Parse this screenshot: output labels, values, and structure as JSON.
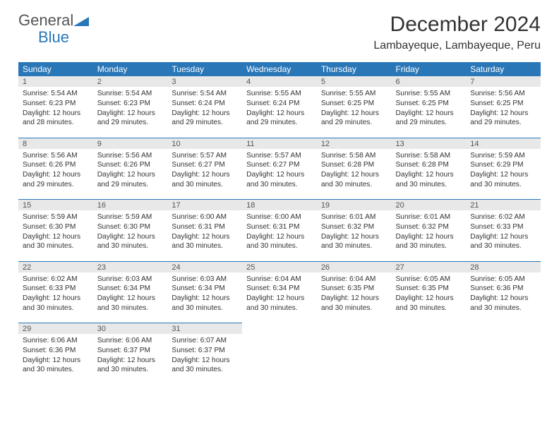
{
  "brand": {
    "word1": "General",
    "word2": "Blue"
  },
  "title": "December 2024",
  "location": "Lambayeque, Lambayeque, Peru",
  "header_bg": "#2a77b8",
  "header_fg": "#ffffff",
  "daynum_bg": "#e8e8e8",
  "row_border": "#2a77b8",
  "text_color": "#333333",
  "weekdays": [
    "Sunday",
    "Monday",
    "Tuesday",
    "Wednesday",
    "Thursday",
    "Friday",
    "Saturday"
  ],
  "weeks": [
    [
      {
        "n": "1",
        "sr": "5:54 AM",
        "ss": "6:23 PM",
        "dl": "12 hours and 28 minutes."
      },
      {
        "n": "2",
        "sr": "5:54 AM",
        "ss": "6:23 PM",
        "dl": "12 hours and 29 minutes."
      },
      {
        "n": "3",
        "sr": "5:54 AM",
        "ss": "6:24 PM",
        "dl": "12 hours and 29 minutes."
      },
      {
        "n": "4",
        "sr": "5:55 AM",
        "ss": "6:24 PM",
        "dl": "12 hours and 29 minutes."
      },
      {
        "n": "5",
        "sr": "5:55 AM",
        "ss": "6:25 PM",
        "dl": "12 hours and 29 minutes."
      },
      {
        "n": "6",
        "sr": "5:55 AM",
        "ss": "6:25 PM",
        "dl": "12 hours and 29 minutes."
      },
      {
        "n": "7",
        "sr": "5:56 AM",
        "ss": "6:25 PM",
        "dl": "12 hours and 29 minutes."
      }
    ],
    [
      {
        "n": "8",
        "sr": "5:56 AM",
        "ss": "6:26 PM",
        "dl": "12 hours and 29 minutes."
      },
      {
        "n": "9",
        "sr": "5:56 AM",
        "ss": "6:26 PM",
        "dl": "12 hours and 29 minutes."
      },
      {
        "n": "10",
        "sr": "5:57 AM",
        "ss": "6:27 PM",
        "dl": "12 hours and 30 minutes."
      },
      {
        "n": "11",
        "sr": "5:57 AM",
        "ss": "6:27 PM",
        "dl": "12 hours and 30 minutes."
      },
      {
        "n": "12",
        "sr": "5:58 AM",
        "ss": "6:28 PM",
        "dl": "12 hours and 30 minutes."
      },
      {
        "n": "13",
        "sr": "5:58 AM",
        "ss": "6:28 PM",
        "dl": "12 hours and 30 minutes."
      },
      {
        "n": "14",
        "sr": "5:59 AM",
        "ss": "6:29 PM",
        "dl": "12 hours and 30 minutes."
      }
    ],
    [
      {
        "n": "15",
        "sr": "5:59 AM",
        "ss": "6:30 PM",
        "dl": "12 hours and 30 minutes."
      },
      {
        "n": "16",
        "sr": "5:59 AM",
        "ss": "6:30 PM",
        "dl": "12 hours and 30 minutes."
      },
      {
        "n": "17",
        "sr": "6:00 AM",
        "ss": "6:31 PM",
        "dl": "12 hours and 30 minutes."
      },
      {
        "n": "18",
        "sr": "6:00 AM",
        "ss": "6:31 PM",
        "dl": "12 hours and 30 minutes."
      },
      {
        "n": "19",
        "sr": "6:01 AM",
        "ss": "6:32 PM",
        "dl": "12 hours and 30 minutes."
      },
      {
        "n": "20",
        "sr": "6:01 AM",
        "ss": "6:32 PM",
        "dl": "12 hours and 30 minutes."
      },
      {
        "n": "21",
        "sr": "6:02 AM",
        "ss": "6:33 PM",
        "dl": "12 hours and 30 minutes."
      }
    ],
    [
      {
        "n": "22",
        "sr": "6:02 AM",
        "ss": "6:33 PM",
        "dl": "12 hours and 30 minutes."
      },
      {
        "n": "23",
        "sr": "6:03 AM",
        "ss": "6:34 PM",
        "dl": "12 hours and 30 minutes."
      },
      {
        "n": "24",
        "sr": "6:03 AM",
        "ss": "6:34 PM",
        "dl": "12 hours and 30 minutes."
      },
      {
        "n": "25",
        "sr": "6:04 AM",
        "ss": "6:34 PM",
        "dl": "12 hours and 30 minutes."
      },
      {
        "n": "26",
        "sr": "6:04 AM",
        "ss": "6:35 PM",
        "dl": "12 hours and 30 minutes."
      },
      {
        "n": "27",
        "sr": "6:05 AM",
        "ss": "6:35 PM",
        "dl": "12 hours and 30 minutes."
      },
      {
        "n": "28",
        "sr": "6:05 AM",
        "ss": "6:36 PM",
        "dl": "12 hours and 30 minutes."
      }
    ],
    [
      {
        "n": "29",
        "sr": "6:06 AM",
        "ss": "6:36 PM",
        "dl": "12 hours and 30 minutes."
      },
      {
        "n": "30",
        "sr": "6:06 AM",
        "ss": "6:37 PM",
        "dl": "12 hours and 30 minutes."
      },
      {
        "n": "31",
        "sr": "6:07 AM",
        "ss": "6:37 PM",
        "dl": "12 hours and 30 minutes."
      },
      null,
      null,
      null,
      null
    ]
  ],
  "labels": {
    "sunrise": "Sunrise: ",
    "sunset": "Sunset: ",
    "daylight": "Daylight: "
  }
}
